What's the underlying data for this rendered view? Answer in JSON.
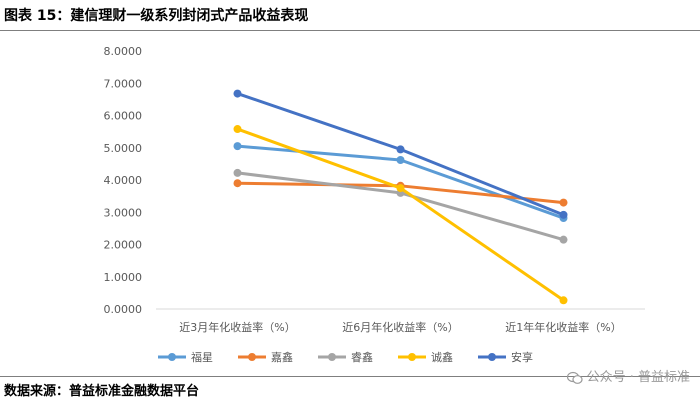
{
  "header": {
    "title": "图表 15：建信理财一级系列封闭式产品收益表现"
  },
  "footer": {
    "source": "数据来源：普益标准金融数据平台",
    "watermark": "公众号 · 普益标准"
  },
  "chart_data": {
    "type": "line",
    "title": "",
    "xlabel": "",
    "ylabel": "",
    "categories": [
      "近3月年化收益率（%）",
      "近6月年化收益率（%）",
      "近1年年化收益率（%）"
    ],
    "ylim": [
      0,
      8
    ],
    "yticks": [
      "0.0000",
      "1.0000",
      "2.0000",
      "3.0000",
      "4.0000",
      "5.0000",
      "6.0000",
      "7.0000",
      "8.0000"
    ],
    "grid": false,
    "legend_position": "bottom",
    "series": [
      {
        "name": "福星",
        "color": "#5b9bd5",
        "values": [
          5.05,
          4.62,
          2.82
        ]
      },
      {
        "name": "嘉鑫",
        "color": "#ed7d31",
        "values": [
          3.9,
          3.82,
          3.3
        ]
      },
      {
        "name": "睿鑫",
        "color": "#a5a5a5",
        "values": [
          4.22,
          3.6,
          2.15
        ]
      },
      {
        "name": "诚鑫",
        "color": "#ffc000",
        "values": [
          5.58,
          3.75,
          0.27
        ]
      },
      {
        "name": "安享",
        "color": "#4472c4",
        "values": [
          6.68,
          4.95,
          2.92
        ]
      }
    ]
  }
}
